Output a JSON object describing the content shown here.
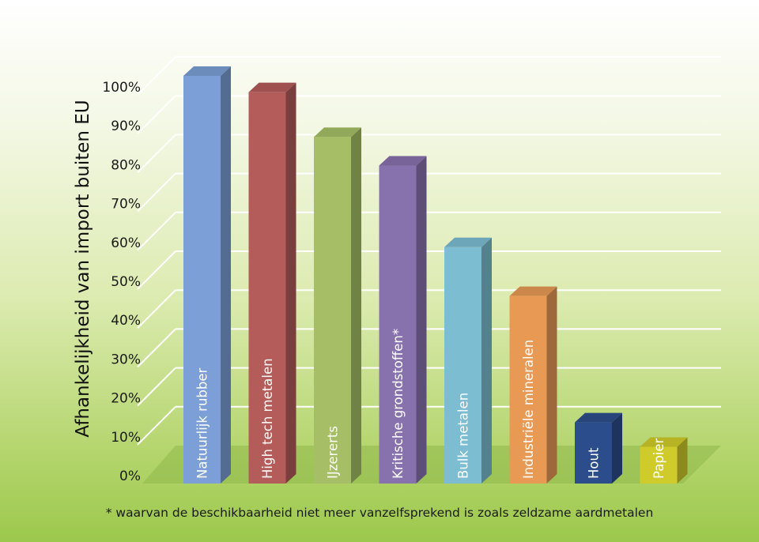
{
  "chart_data": {
    "type": "bar",
    "ylabel": "Afhankelijkheid van import buiten EU",
    "ylim": [
      0,
      100
    ],
    "yticks": [
      "0%",
      "10%",
      "20%",
      "30%",
      "40%",
      "50%",
      "60%",
      "70%",
      "80%",
      "90%",
      "100%"
    ],
    "categories": [
      "Natuurlijk rubber",
      "High tech metalen",
      "IJzererts",
      "Kritische grondstoffen*",
      "Bulk metalen",
      "Industriële mineralen",
      "Hout",
      "Papier"
    ],
    "values": [
      100,
      96,
      85,
      78,
      58,
      46,
      15,
      9
    ],
    "colors": [
      "#7b9fd6",
      "#b45c5a",
      "#a6bf66",
      "#8872ad",
      "#7dbdd2",
      "#e89a55",
      "#2c4d8c",
      "#cfcb2a"
    ],
    "grid": true,
    "perspective": "3d"
  },
  "footnote": "* waarvan de beschikbaarheid niet meer vanzelfsprekend is zoals zeldzame aardmetalen"
}
